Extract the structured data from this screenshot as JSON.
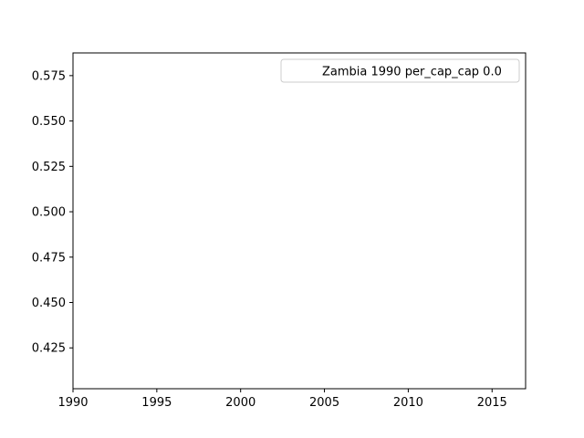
{
  "chart_data": {
    "type": "line",
    "title": "",
    "xlabel": "",
    "ylabel": "",
    "xlim": [
      1990,
      2017
    ],
    "ylim": [
      0.4025,
      0.5875
    ],
    "xticks": [
      1990,
      1995,
      2000,
      2005,
      2010,
      2015
    ],
    "yticks": [
      0.425,
      0.45,
      0.475,
      0.5,
      0.525,
      0.55,
      0.575
    ],
    "xtick_labels": [
      "1990",
      "1995",
      "2000",
      "2005",
      "2010",
      "2015"
    ],
    "ytick_labels": [
      "0.425",
      "0.450",
      "0.475",
      "0.500",
      "0.525",
      "0.550",
      "0.575"
    ],
    "grid": false,
    "legend_position": "top-right",
    "series": [
      {
        "name": "Zambia 1990 per_cap_cap 0.0",
        "x": [],
        "y": [],
        "color": "#ffffff"
      }
    ]
  }
}
